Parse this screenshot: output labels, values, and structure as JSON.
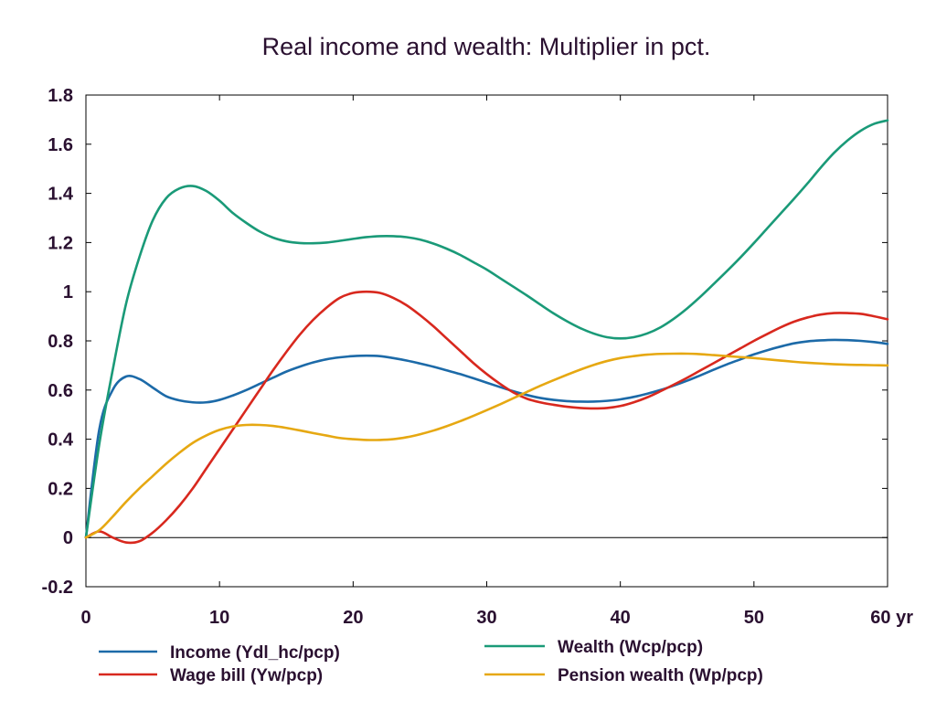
{
  "chart_data": {
    "type": "line",
    "title": "Real income and wealth: Multiplier in pct.",
    "xlabel": "",
    "ylabel": "",
    "x_unit_label": "yr",
    "xlim": [
      0,
      60
    ],
    "ylim": [
      -0.2,
      1.8
    ],
    "x_ticks": [
      0,
      10,
      20,
      30,
      40,
      50,
      60
    ],
    "y_ticks": [
      -0.2,
      0,
      0.2,
      0.4,
      0.6,
      0.8,
      1,
      1.2,
      1.4,
      1.6,
      1.8
    ],
    "x_tick_labels": [
      "0",
      "10",
      "20",
      "30",
      "40",
      "50",
      "60 yr"
    ],
    "y_tick_labels": [
      "-0.2",
      "0",
      "0.2",
      "0.4",
      "0.6",
      "0.8",
      "1",
      "1.2",
      "1.4",
      "1.6",
      "1.8"
    ],
    "grid": false,
    "zero_line": true,
    "legend_position": "bottom",
    "x": [
      0,
      1,
      2,
      3,
      4,
      5,
      6,
      7,
      8,
      9,
      10,
      11,
      12,
      13,
      14,
      15,
      16,
      17,
      18,
      19,
      20,
      21,
      22,
      23,
      24,
      25,
      26,
      27,
      28,
      29,
      30,
      31,
      32,
      33,
      34,
      35,
      36,
      37,
      38,
      39,
      40,
      41,
      42,
      43,
      44,
      45,
      46,
      47,
      48,
      49,
      50,
      51,
      52,
      53,
      54,
      55,
      56,
      57,
      58,
      59,
      60
    ],
    "series": [
      {
        "name": "Income (Ydl_hc/pcp)",
        "color": "#1c6aa8",
        "values": [
          0,
          0.44,
          0.6,
          0.655,
          0.645,
          0.61,
          0.575,
          0.558,
          0.55,
          0.55,
          0.56,
          0.578,
          0.6,
          0.625,
          0.65,
          0.675,
          0.695,
          0.712,
          0.725,
          0.733,
          0.738,
          0.74,
          0.738,
          0.73,
          0.72,
          0.708,
          0.695,
          0.68,
          0.665,
          0.648,
          0.63,
          0.612,
          0.595,
          0.58,
          0.568,
          0.56,
          0.555,
          0.553,
          0.553,
          0.556,
          0.562,
          0.572,
          0.585,
          0.6,
          0.618,
          0.638,
          0.66,
          0.683,
          0.705,
          0.725,
          0.745,
          0.762,
          0.777,
          0.79,
          0.798,
          0.802,
          0.804,
          0.803,
          0.8,
          0.795,
          0.788
        ]
      },
      {
        "name": "Wealth (Wcp/pcp)",
        "color": "#1a9a78",
        "values": [
          0,
          0.38,
          0.68,
          0.95,
          1.14,
          1.29,
          1.38,
          1.42,
          1.43,
          1.41,
          1.37,
          1.32,
          1.28,
          1.245,
          1.22,
          1.205,
          1.198,
          1.197,
          1.2,
          1.207,
          1.215,
          1.222,
          1.226,
          1.226,
          1.222,
          1.212,
          1.196,
          1.175,
          1.15,
          1.12,
          1.09,
          1.055,
          1.02,
          0.985,
          0.948,
          0.912,
          0.88,
          0.852,
          0.83,
          0.815,
          0.81,
          0.815,
          0.83,
          0.855,
          0.89,
          0.932,
          0.98,
          1.032,
          1.085,
          1.14,
          1.198,
          1.258,
          1.318,
          1.378,
          1.44,
          1.505,
          1.565,
          1.615,
          1.655,
          1.683,
          1.697
        ]
      },
      {
        "name": "Wage bill (Yw/pcp)",
        "color": "#d8281e",
        "values": [
          0,
          0.025,
          0,
          -0.02,
          -0.015,
          0.02,
          0.07,
          0.13,
          0.2,
          0.28,
          0.36,
          0.44,
          0.52,
          0.6,
          0.68,
          0.755,
          0.825,
          0.885,
          0.935,
          0.975,
          0.995,
          1,
          0.995,
          0.975,
          0.945,
          0.905,
          0.86,
          0.81,
          0.76,
          0.71,
          0.665,
          0.625,
          0.59,
          0.565,
          0.55,
          0.54,
          0.532,
          0.527,
          0.525,
          0.527,
          0.535,
          0.55,
          0.57,
          0.595,
          0.622,
          0.65,
          0.68,
          0.71,
          0.74,
          0.77,
          0.8,
          0.828,
          0.855,
          0.878,
          0.895,
          0.907,
          0.913,
          0.913,
          0.91,
          0.9,
          0.888
        ]
      },
      {
        "name": "Pension wealth (Wp/pcp)",
        "color": "#e6a812",
        "values": [
          0,
          0.03,
          0.085,
          0.145,
          0.2,
          0.25,
          0.3,
          0.345,
          0.385,
          0.415,
          0.438,
          0.452,
          0.458,
          0.458,
          0.454,
          0.446,
          0.436,
          0.425,
          0.415,
          0.405,
          0.4,
          0.397,
          0.397,
          0.4,
          0.408,
          0.42,
          0.435,
          0.453,
          0.473,
          0.495,
          0.518,
          0.542,
          0.567,
          0.592,
          0.617,
          0.64,
          0.662,
          0.683,
          0.702,
          0.718,
          0.73,
          0.738,
          0.744,
          0.747,
          0.748,
          0.748,
          0.746,
          0.742,
          0.738,
          0.734,
          0.73,
          0.725,
          0.72,
          0.715,
          0.711,
          0.708,
          0.705,
          0.703,
          0.702,
          0.701,
          0.7
        ]
      }
    ]
  }
}
